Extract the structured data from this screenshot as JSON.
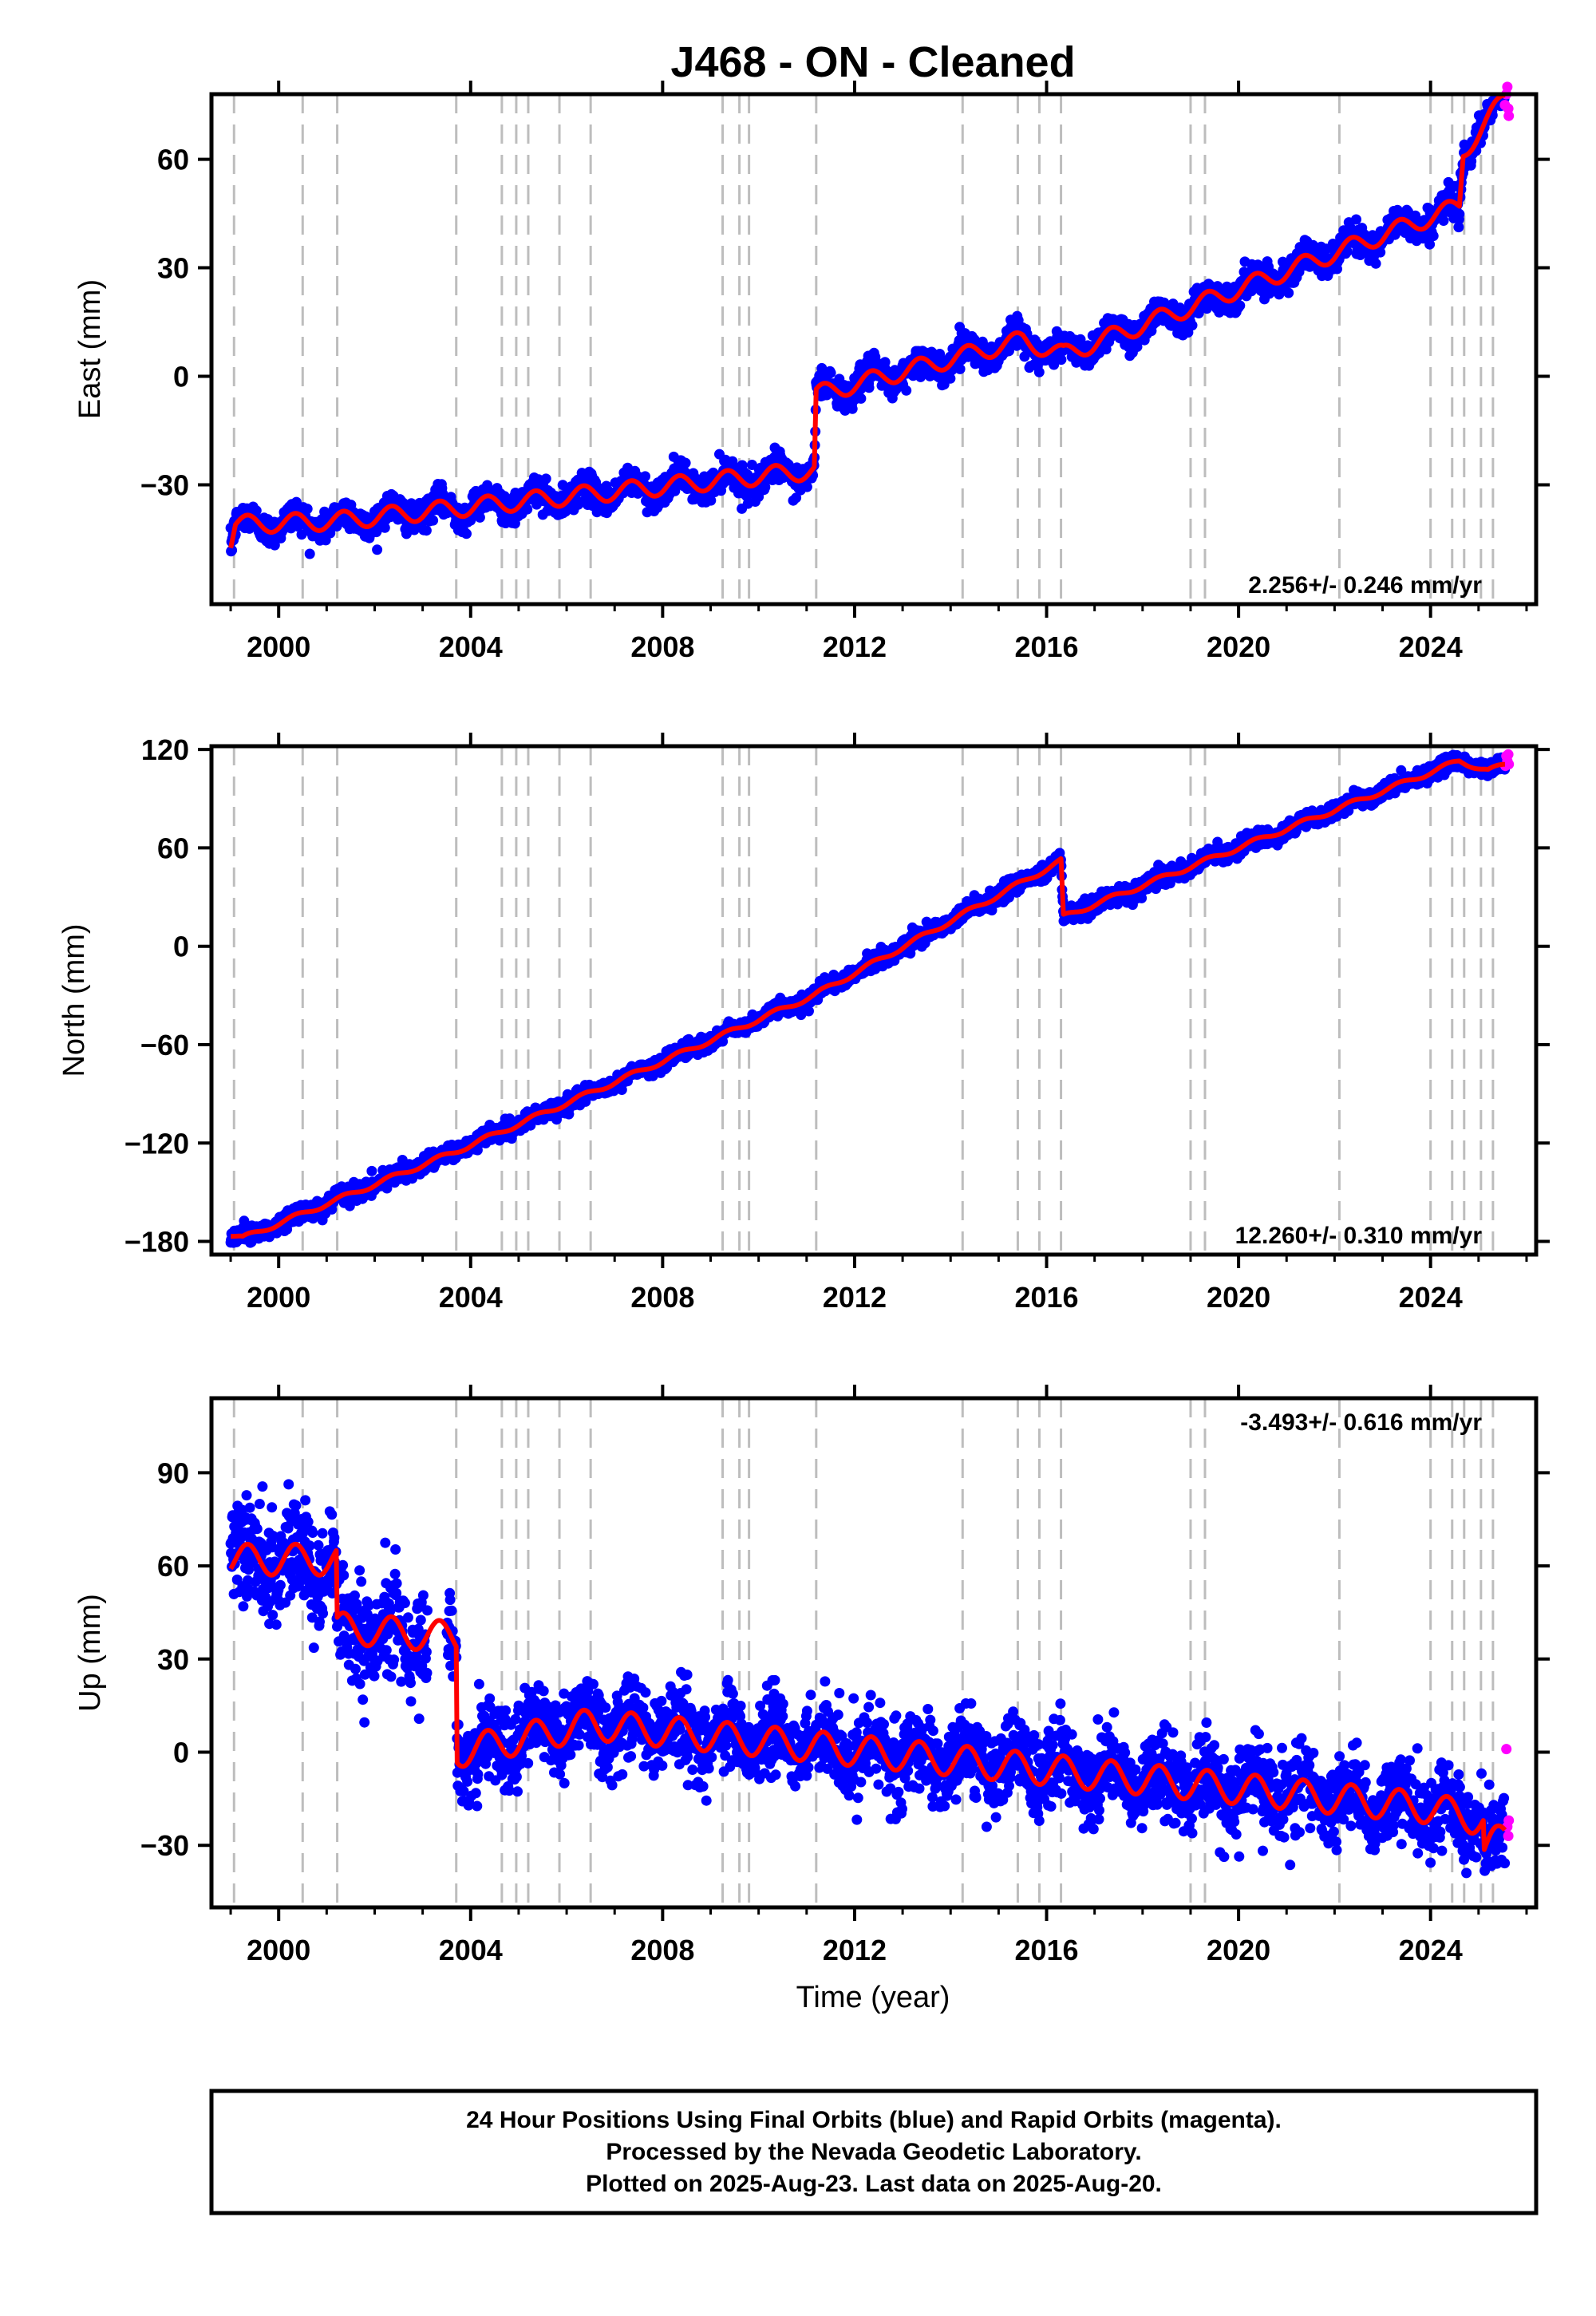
{
  "title": "J468  - ON - Cleaned",
  "xlabel": "Time (year)",
  "footer": {
    "line1": "24 Hour Positions Using Final Orbits (blue) and Rapid Orbits (magenta).",
    "line2": "Processed by the Nevada Geodetic Laboratory.",
    "line3": "Plotted on 2025-Aug-23. Last data on 2025-Aug-20."
  },
  "colors": {
    "final_orbits": "#0000ff",
    "rapid_orbits": "#ff00ff",
    "model": "#ff0000",
    "event_lines": "#bdbdbd"
  },
  "chart_data": [
    {
      "type": "scatter",
      "name": "east",
      "ylabel": "East (mm)",
      "xlim": [
        1998.6,
        2026.2
      ],
      "ylim": [
        -63,
        78
      ],
      "yticks": [
        -30,
        0,
        30,
        60
      ],
      "xticks": [
        2000,
        2004,
        2008,
        2012,
        2016,
        2020,
        2024
      ],
      "rate_text": "2.256+/- 0.246 mm/yr",
      "rate_position": "bottom-right",
      "grid": false,
      "model_knots": [
        [
          1999.0,
          -46
        ],
        [
          1999.1,
          -41
        ],
        [
          2001.2,
          -40
        ],
        [
          2011.16,
          -26
        ],
        [
          2011.2,
          -5
        ],
        [
          2015.5,
          10
        ],
        [
          2016.35,
          6
        ],
        [
          2024.6,
          47
        ],
        [
          2024.68,
          62
        ],
        [
          2025.55,
          77
        ]
      ],
      "seasonal_amplitude_mm": 2.5,
      "noise_sd_mm": 2.0,
      "rapid_points": [
        [
          2025.55,
          75
        ],
        [
          2025.58,
          78
        ],
        [
          2025.6,
          80
        ],
        [
          2025.62,
          74
        ],
        [
          2025.63,
          72
        ]
      ]
    },
    {
      "type": "scatter",
      "name": "north",
      "ylabel": "North (mm)",
      "xlim": [
        1998.6,
        2026.2
      ],
      "ylim": [
        -188,
        122
      ],
      "yticks": [
        -180,
        -120,
        -60,
        0,
        60,
        120
      ],
      "xticks": [
        2000,
        2004,
        2008,
        2012,
        2016,
        2020,
        2024
      ],
      "rate_text": "12.260+/- 0.310 mm/yr",
      "rate_position": "bottom-right",
      "grid": false,
      "model_knots": [
        [
          1999.0,
          -176
        ],
        [
          1999.25,
          -178
        ],
        [
          2003.7,
          -125
        ],
        [
          2011.15,
          -30
        ],
        [
          2016.3,
          52
        ],
        [
          2016.35,
          18
        ],
        [
          2024.6,
          113
        ],
        [
          2025.2,
          107
        ],
        [
          2025.6,
          111
        ]
      ],
      "seasonal_amplitude_mm": 1.5,
      "noise_sd_mm": 2.5,
      "rapid_points": [
        [
          2025.56,
          110
        ],
        [
          2025.58,
          116
        ],
        [
          2025.6,
          113
        ],
        [
          2025.62,
          117
        ],
        [
          2025.63,
          111
        ]
      ]
    },
    {
      "type": "scatter",
      "name": "up",
      "ylabel": "Up (mm)",
      "xlim": [
        1998.6,
        2026.2
      ],
      "ylim": [
        -50,
        114
      ],
      "yticks": [
        -30,
        0,
        30,
        60,
        90
      ],
      "xticks": [
        2000,
        2004,
        2008,
        2012,
        2016,
        2020,
        2024
      ],
      "rate_text": "-3.493+/- 0.616 mm/yr",
      "rate_position": "top-right",
      "grid": false,
      "model_knots": [
        [
          1999.0,
          62
        ],
        [
          2001.2,
          62
        ],
        [
          2001.22,
          40
        ],
        [
          2003.7,
          37
        ],
        [
          2003.72,
          0
        ],
        [
          2006.5,
          9
        ],
        [
          2024.0,
          -18
        ],
        [
          2025.1,
          -22
        ],
        [
          2025.12,
          -32
        ],
        [
          2025.6,
          -26
        ]
      ],
      "seasonal_amplitude_mm": 5.0,
      "noise_sd_mm": 6.5,
      "data_gap": [
        2003.1,
        2003.5
      ],
      "rapid_points": [
        [
          2025.58,
          1
        ],
        [
          2025.6,
          -24
        ],
        [
          2025.62,
          -27
        ],
        [
          2025.63,
          -22
        ]
      ]
    }
  ],
  "event_years": [
    1999.07,
    2000.5,
    2001.22,
    2003.7,
    2004.65,
    2004.95,
    2005.2,
    2005.85,
    2006.5,
    2009.25,
    2009.6,
    2009.8,
    2011.2,
    2014.25,
    2015.4,
    2015.85,
    2016.3,
    2019.0,
    2019.3,
    2022.1,
    2024.0,
    2024.45,
    2024.7,
    2025.05,
    2025.3
  ]
}
